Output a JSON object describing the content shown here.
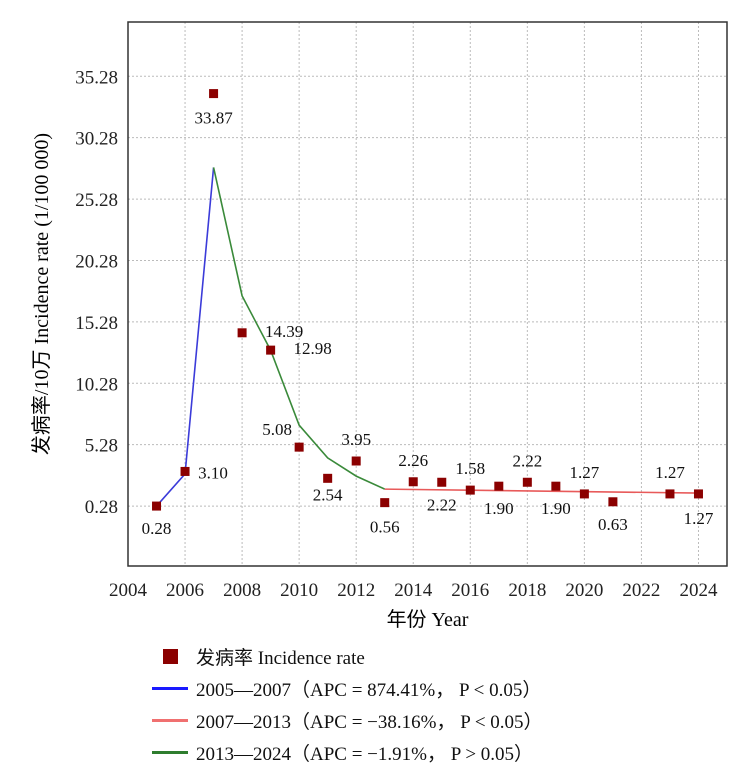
{
  "chart_data": {
    "type": "scatter",
    "title": "",
    "xlabel": "年份  Year",
    "ylabel": "发病率/10万  Incidence  rate  (1/100 000)",
    "xlim": [
      2004,
      2025
    ],
    "ylim": [
      -4.6,
      39.7
    ],
    "xticks": [
      "2004",
      "2006",
      "2008",
      "2010",
      "2012",
      "2014",
      "2016",
      "2018",
      "2020",
      "2022",
      "2024"
    ],
    "yticks": [
      "0.28",
      "5.28",
      "10.28",
      "15.28",
      "20.28",
      "25.28",
      "30.28",
      "35.28"
    ],
    "grid": true,
    "points": {
      "name": "发病率  Incidence  rate",
      "color": "#8b0000",
      "x": [
        2005,
        2006,
        2007,
        2008,
        2009,
        2010,
        2011,
        2012,
        2013,
        2014,
        2015,
        2016,
        2017,
        2018,
        2019,
        2020,
        2021,
        2023,
        2024
      ],
      "y": [
        0.28,
        3.1,
        33.87,
        14.39,
        12.98,
        5.08,
        2.54,
        3.95,
        0.56,
        2.26,
        2.22,
        1.58,
        1.9,
        2.22,
        1.9,
        1.27,
        0.63,
        1.27,
        1.27
      ],
      "labels": [
        "0.28",
        "3.10",
        "33.87",
        "14.39",
        "12.98",
        "5.08",
        "2.54",
        "3.95",
        "0.56",
        "2.26",
        "2.22",
        "1.58",
        "1.90",
        "2.22",
        "1.90",
        "1.27",
        "0.63",
        "1.27",
        "1.27"
      ]
    },
    "fit_lines": [
      {
        "color": "#3b3bd9",
        "x": [
          2005,
          2006,
          2007
        ],
        "y": [
          0.28,
          2.9,
          27.86
        ]
      },
      {
        "color": "#3a8a3a",
        "x": [
          2007,
          2008,
          2009,
          2010,
          2011,
          2012,
          2013
        ],
        "y": [
          27.86,
          17.4,
          12.97,
          6.87,
          4.2,
          2.72,
          1.66
        ]
      },
      {
        "color": "#e85a5a",
        "x": [
          2013,
          2024
        ],
        "y": [
          1.66,
          1.34
        ]
      }
    ],
    "legend": [
      {
        "type": "marker",
        "color": "#8b0000",
        "label": "发病率  Incidence  rate"
      },
      {
        "type": "line",
        "color": "#1a1aff",
        "label": "2005—2007（APC = 874.41%， P < 0.05）"
      },
      {
        "type": "line",
        "color": "#f07070",
        "label": "2007—2013（APC = −38.16%， P < 0.05）"
      },
      {
        "type": "line",
        "color": "#2e7d2e",
        "label": "2013—2024（APC = −1.91%， P > 0.05）"
      }
    ],
    "legend_position": "bottom"
  }
}
